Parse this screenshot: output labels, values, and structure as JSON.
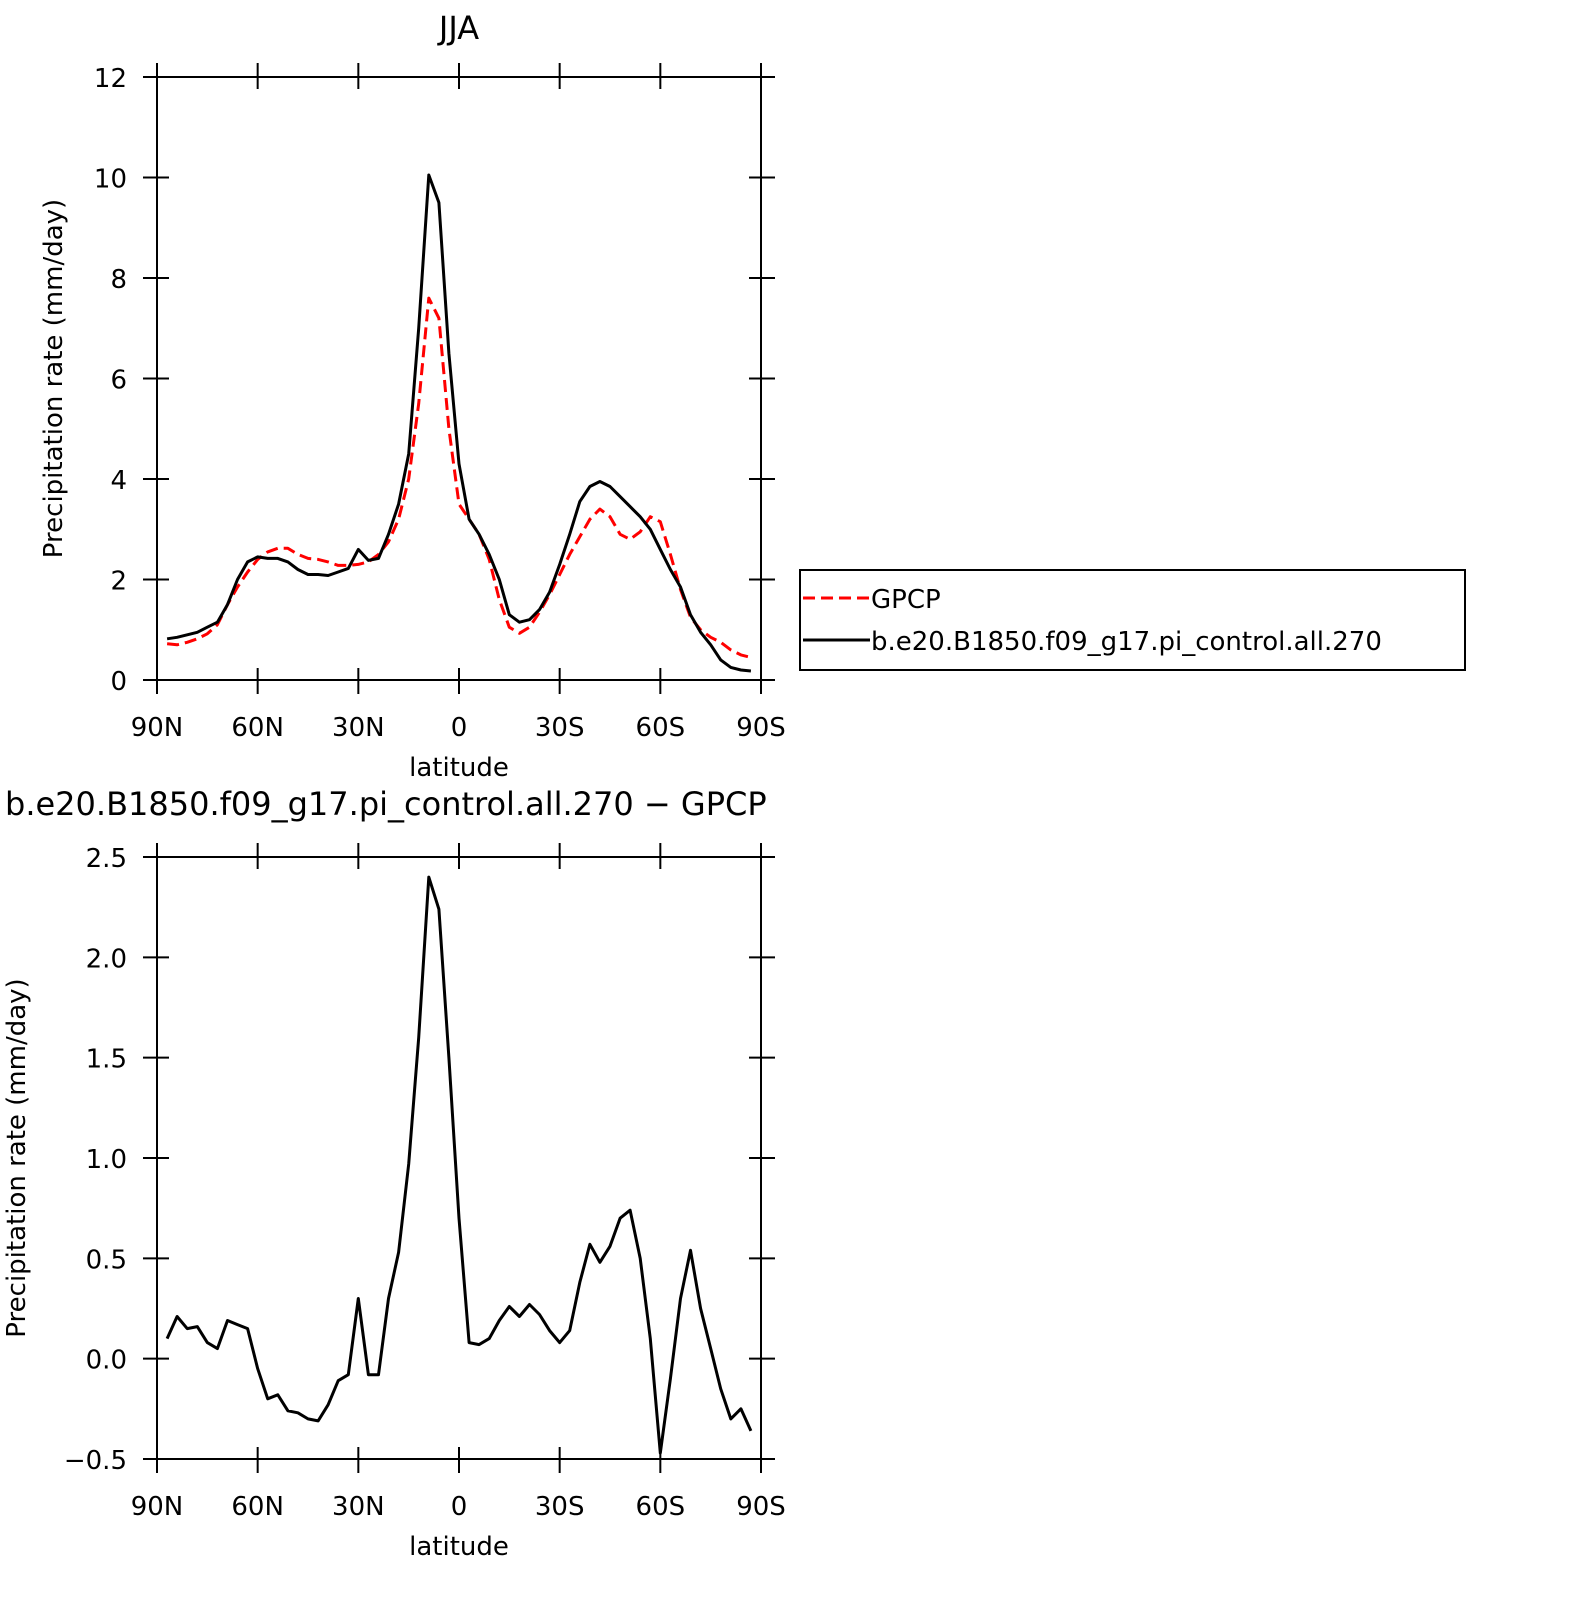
{
  "chart_data": [
    {
      "type": "line",
      "title": "JJA",
      "xlabel": "latitude",
      "ylabel": "Precipitation rate (mm/day)",
      "x": [
        87,
        84,
        81,
        78,
        75,
        72,
        69,
        66,
        63,
        60,
        57,
        54,
        51,
        48,
        45,
        42,
        39,
        36,
        33,
        30,
        27,
        24,
        21,
        18,
        15,
        12,
        9,
        6,
        3,
        0,
        -3,
        -6,
        -9,
        -12,
        -15,
        -18,
        -21,
        -24,
        -27,
        -30,
        -33,
        -36,
        -39,
        -42,
        -45,
        -48,
        -51,
        -54,
        -57,
        -60,
        -63,
        -66,
        -69,
        -72,
        -75,
        -78,
        -81,
        -84,
        -87
      ],
      "series": [
        {
          "name": "GPCP",
          "color": "#ff0000",
          "dashed": true,
          "values": [
            0.72,
            0.7,
            0.75,
            0.82,
            0.92,
            1.1,
            1.5,
            1.85,
            2.15,
            2.4,
            2.55,
            2.62,
            2.62,
            2.5,
            2.42,
            2.4,
            2.35,
            2.28,
            2.28,
            2.3,
            2.35,
            2.5,
            2.75,
            3.2,
            4.0,
            5.5,
            7.6,
            7.2,
            5.0,
            3.5,
            3.2,
            2.9,
            2.4,
            1.6,
            1.05,
            0.93,
            1.05,
            1.35,
            1.7,
            2.1,
            2.5,
            2.85,
            3.2,
            3.4,
            3.25,
            2.9,
            2.8,
            2.95,
            3.25,
            3.15,
            2.5,
            1.8,
            1.25,
            1.0,
            0.85,
            0.75,
            0.6,
            0.5,
            0.45
          ]
        },
        {
          "name": "b.e20.B1850.f09_g17.pi_control.all.270",
          "color": "#000000",
          "dashed": false,
          "values": [
            0.82,
            0.85,
            0.9,
            0.95,
            1.05,
            1.15,
            1.5,
            2.0,
            2.35,
            2.45,
            2.42,
            2.42,
            2.35,
            2.2,
            2.1,
            2.1,
            2.08,
            2.15,
            2.22,
            2.6,
            2.38,
            2.42,
            2.9,
            3.5,
            4.5,
            7.0,
            10.05,
            9.5,
            6.5,
            4.3,
            3.2,
            2.9,
            2.5,
            2.0,
            1.3,
            1.15,
            1.2,
            1.4,
            1.75,
            2.3,
            2.9,
            3.55,
            3.85,
            3.95,
            3.85,
            3.65,
            3.45,
            3.25,
            3.0,
            2.6,
            2.2,
            1.85,
            1.3,
            0.95,
            0.7,
            0.4,
            0.25,
            0.2,
            0.18
          ]
        }
      ],
      "xlim": [
        90,
        -90
      ],
      "xticks": [
        {
          "value": 90,
          "label": "90N"
        },
        {
          "value": 60,
          "label": "60N"
        },
        {
          "value": 30,
          "label": "30N"
        },
        0,
        {
          "value": -30,
          "label": "30S"
        },
        {
          "value": -60,
          "label": "60S"
        },
        {
          "value": -90,
          "label": "90S"
        }
      ],
      "ylim": [
        0,
        12
      ],
      "yticks": [
        0,
        2,
        4,
        6,
        8,
        10,
        12
      ],
      "legend": "right"
    },
    {
      "type": "line",
      "title": "b.e20.B1850.f09_g17.pi_control.all.270 − GPCP",
      "xlabel": "latitude",
      "ylabel": "Precipitation rate (mm/day)",
      "x": [
        87,
        84,
        81,
        78,
        75,
        72,
        69,
        66,
        63,
        60,
        57,
        54,
        51,
        48,
        45,
        42,
        39,
        36,
        33,
        30,
        27,
        24,
        21,
        18,
        15,
        12,
        9,
        6,
        3,
        0,
        -3,
        -6,
        -9,
        -12,
        -15,
        -18,
        -21,
        -24,
        -27,
        -30,
        -33,
        -36,
        -39,
        -42,
        -45,
        -48,
        -51,
        -54,
        -57,
        -60,
        -63,
        -66,
        -69,
        -72,
        -75,
        -78,
        -81,
        -84,
        -87
      ],
      "series": [
        {
          "color": "#000000",
          "dashed": false,
          "values": [
            0.1,
            0.21,
            0.15,
            0.16,
            0.08,
            0.05,
            0.19,
            0.17,
            0.15,
            -0.05,
            -0.2,
            -0.18,
            -0.26,
            -0.27,
            -0.3,
            -0.31,
            -0.23,
            -0.11,
            -0.08,
            0.3,
            -0.08,
            -0.08,
            0.3,
            0.53,
            0.97,
            1.6,
            2.4,
            2.24,
            1.5,
            0.7,
            0.08,
            0.07,
            0.1,
            0.19,
            0.26,
            0.21,
            0.27,
            0.22,
            0.14,
            0.08,
            0.14,
            0.38,
            0.57,
            0.48,
            0.56,
            0.7,
            0.74,
            0.5,
            0.1,
            -0.47,
            -0.1,
            0.3,
            0.54,
            0.25,
            0.05,
            -0.15,
            -0.3,
            -0.25,
            -0.36
          ]
        }
      ],
      "xlim": [
        90,
        -90
      ],
      "xticks": [
        {
          "value": 90,
          "label": "90N"
        },
        {
          "value": 60,
          "label": "60N"
        },
        {
          "value": 30,
          "label": "30N"
        },
        0,
        {
          "value": -30,
          "label": "30S"
        },
        {
          "value": -60,
          "label": "60S"
        },
        {
          "value": -90,
          "label": "90S"
        }
      ],
      "ylim": [
        -0.5,
        2.5
      ],
      "yticks": [
        {
          "value": -0.5,
          "label": "−0.5"
        },
        {
          "value": 0,
          "label": "0.0"
        },
        0.5,
        {
          "value": 1,
          "label": "1.0"
        },
        1.5,
        {
          "value": 2,
          "label": "2.0"
        },
        2.5
      ]
    }
  ]
}
